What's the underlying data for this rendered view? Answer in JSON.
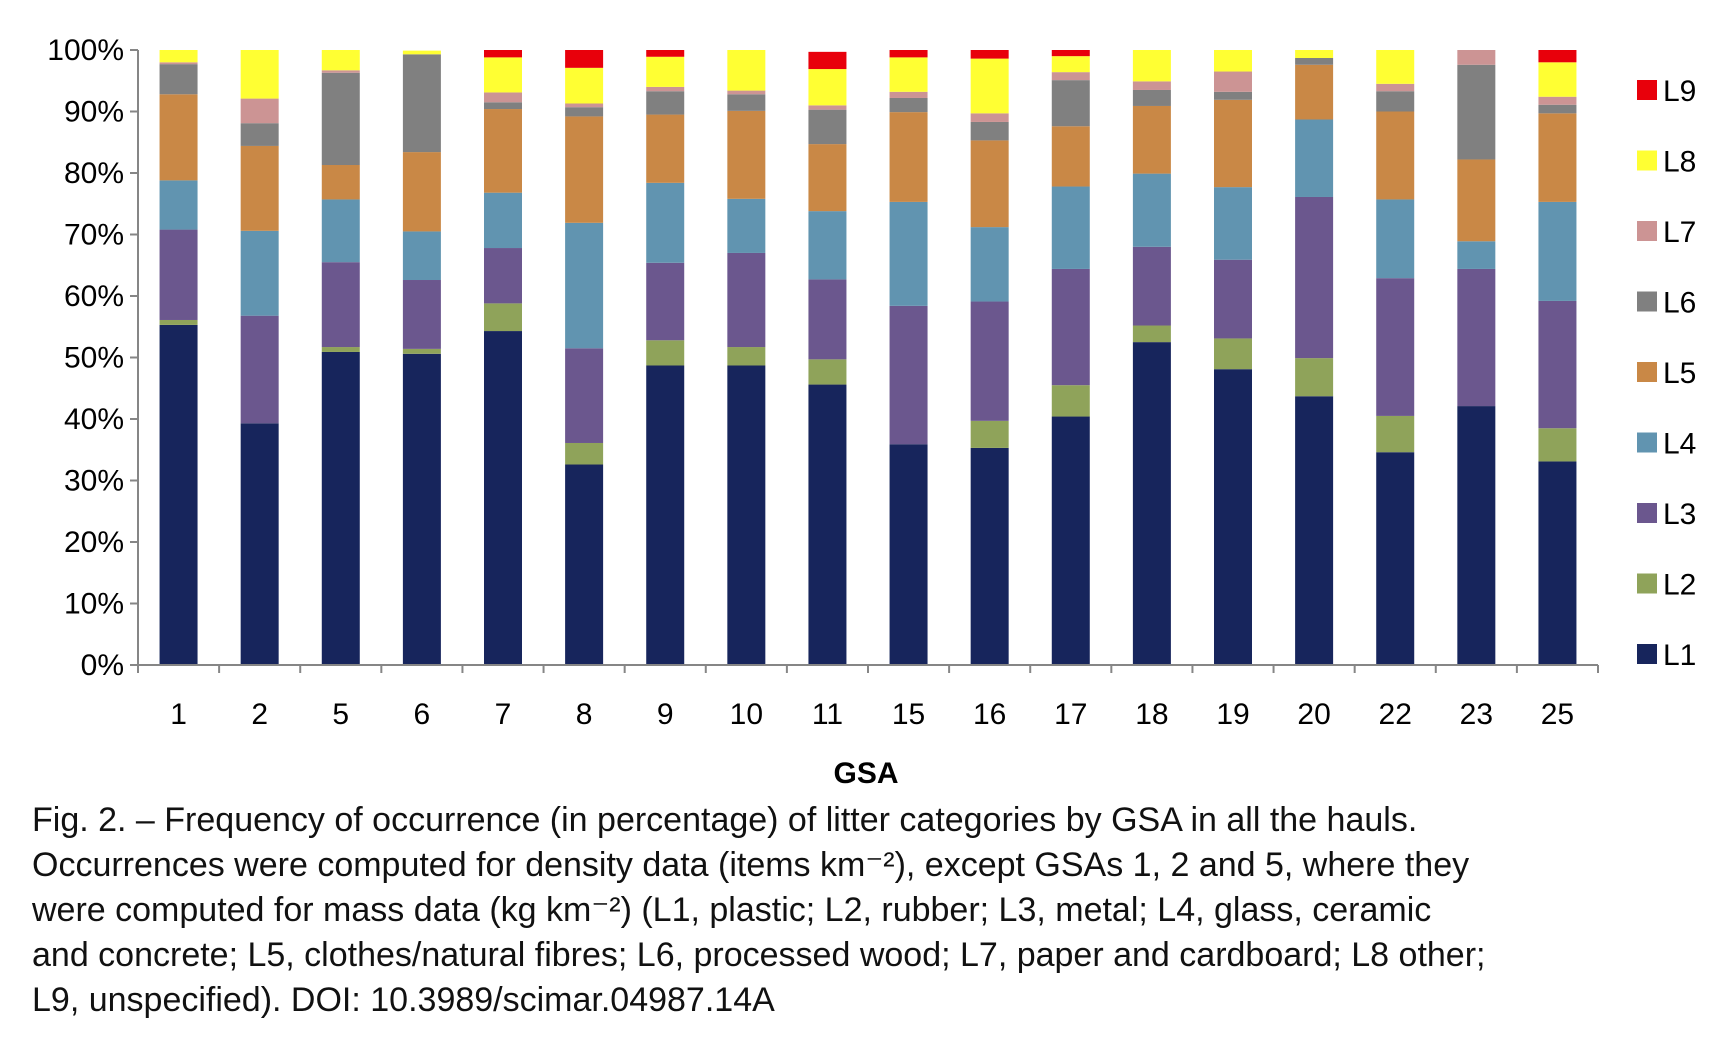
{
  "caption": {
    "line1": "Fig. 2. – Frequency of occurrence (in percentage) of litter categories by GSA in all the hauls.",
    "line2": "Occurrences were computed for density data (items km⁻²), except GSAs 1, 2 and 5, where they",
    "line3": "were computed for mass data (kg km⁻²) (L1, plastic; L2, rubber; L3, metal; L4, glass, ceramic",
    "line4": "and concrete; L5, clothes/natural fibres; L6, processed wood; L7, paper and cardboard; L8 other;",
    "line5": "L9, unspecified). DOI: 10.3989/scimar.04987.14A"
  },
  "chart_data": {
    "type": "bar",
    "stacked": true,
    "percent": true,
    "xlabel": "GSA",
    "ylabel": "",
    "ylim": [
      0,
      100
    ],
    "yticks": [
      "0%",
      "10%",
      "20%",
      "30%",
      "40%",
      "50%",
      "60%",
      "70%",
      "80%",
      "90%",
      "100%"
    ],
    "legend_position": "right",
    "categories": [
      "1",
      "2",
      "5",
      "6",
      "7",
      "8",
      "9",
      "10",
      "11",
      "15",
      "16",
      "17",
      "18",
      "19",
      "20",
      "22",
      "23",
      "25"
    ],
    "series": [
      {
        "name": "L1",
        "color": "#17255c",
        "values": [
          55.3,
          39.3,
          50.9,
          50.6,
          54.3,
          32.6,
          48.7,
          48.7,
          45.6,
          35.9,
          35.3,
          40.4,
          52.5,
          48.1,
          43.7,
          34.6,
          42.1,
          33.1
        ]
      },
      {
        "name": "L2",
        "color": "#8fa35a",
        "values": [
          0.8,
          0.0,
          0.8,
          0.8,
          4.5,
          3.5,
          4.1,
          3.0,
          4.1,
          0.0,
          4.4,
          5.1,
          2.7,
          5.0,
          6.2,
          5.9,
          0.0,
          5.4
        ]
      },
      {
        "name": "L3",
        "color": "#6b578e",
        "values": [
          14.7,
          17.5,
          13.8,
          11.2,
          9.0,
          15.4,
          12.6,
          15.3,
          13.0,
          22.5,
          19.4,
          18.9,
          12.8,
          12.8,
          26.2,
          22.4,
          22.3,
          20.7
        ]
      },
      {
        "name": "L4",
        "color": "#6194b0",
        "values": [
          8.0,
          13.8,
          10.2,
          7.9,
          9.0,
          20.4,
          13.0,
          8.8,
          11.1,
          16.9,
          12.1,
          13.4,
          11.9,
          11.8,
          12.6,
          12.8,
          4.5,
          16.1
        ]
      },
      {
        "name": "L5",
        "color": "#c98846",
        "values": [
          14.0,
          13.8,
          5.6,
          12.9,
          13.6,
          17.3,
          11.1,
          14.3,
          10.9,
          14.6,
          14.1,
          9.8,
          11.0,
          14.2,
          8.9,
          14.3,
          13.3,
          14.4
        ]
      },
      {
        "name": "L6",
        "color": "#808080",
        "values": [
          4.9,
          3.7,
          15.0,
          15.9,
          1.1,
          1.5,
          3.8,
          2.7,
          5.6,
          2.3,
          3.0,
          7.5,
          2.6,
          1.3,
          1.1,
          3.3,
          15.4,
          1.4
        ]
      },
      {
        "name": "L7",
        "color": "#cc9494",
        "values": [
          0.3,
          4.0,
          0.4,
          0.0,
          1.6,
          0.6,
          0.7,
          0.6,
          0.7,
          1.0,
          1.4,
          1.3,
          1.4,
          3.3,
          0.0,
          1.2,
          2.4,
          1.3
        ]
      },
      {
        "name": "L8",
        "color": "#ffff33",
        "values": [
          2.0,
          7.9,
          3.3,
          0.6,
          5.7,
          5.8,
          4.9,
          6.6,
          5.9,
          5.6,
          8.9,
          2.6,
          5.1,
          3.5,
          1.3,
          5.5,
          0.0,
          5.6
        ]
      },
      {
        "name": "L9",
        "color": "#e8000b",
        "values": [
          0.0,
          0.0,
          0.0,
          0.0,
          1.2,
          2.9,
          1.1,
          0.0,
          2.8,
          1.2,
          1.4,
          1.0,
          0.0,
          0.0,
          0.0,
          0.0,
          0.0,
          2.0
        ]
      }
    ]
  }
}
